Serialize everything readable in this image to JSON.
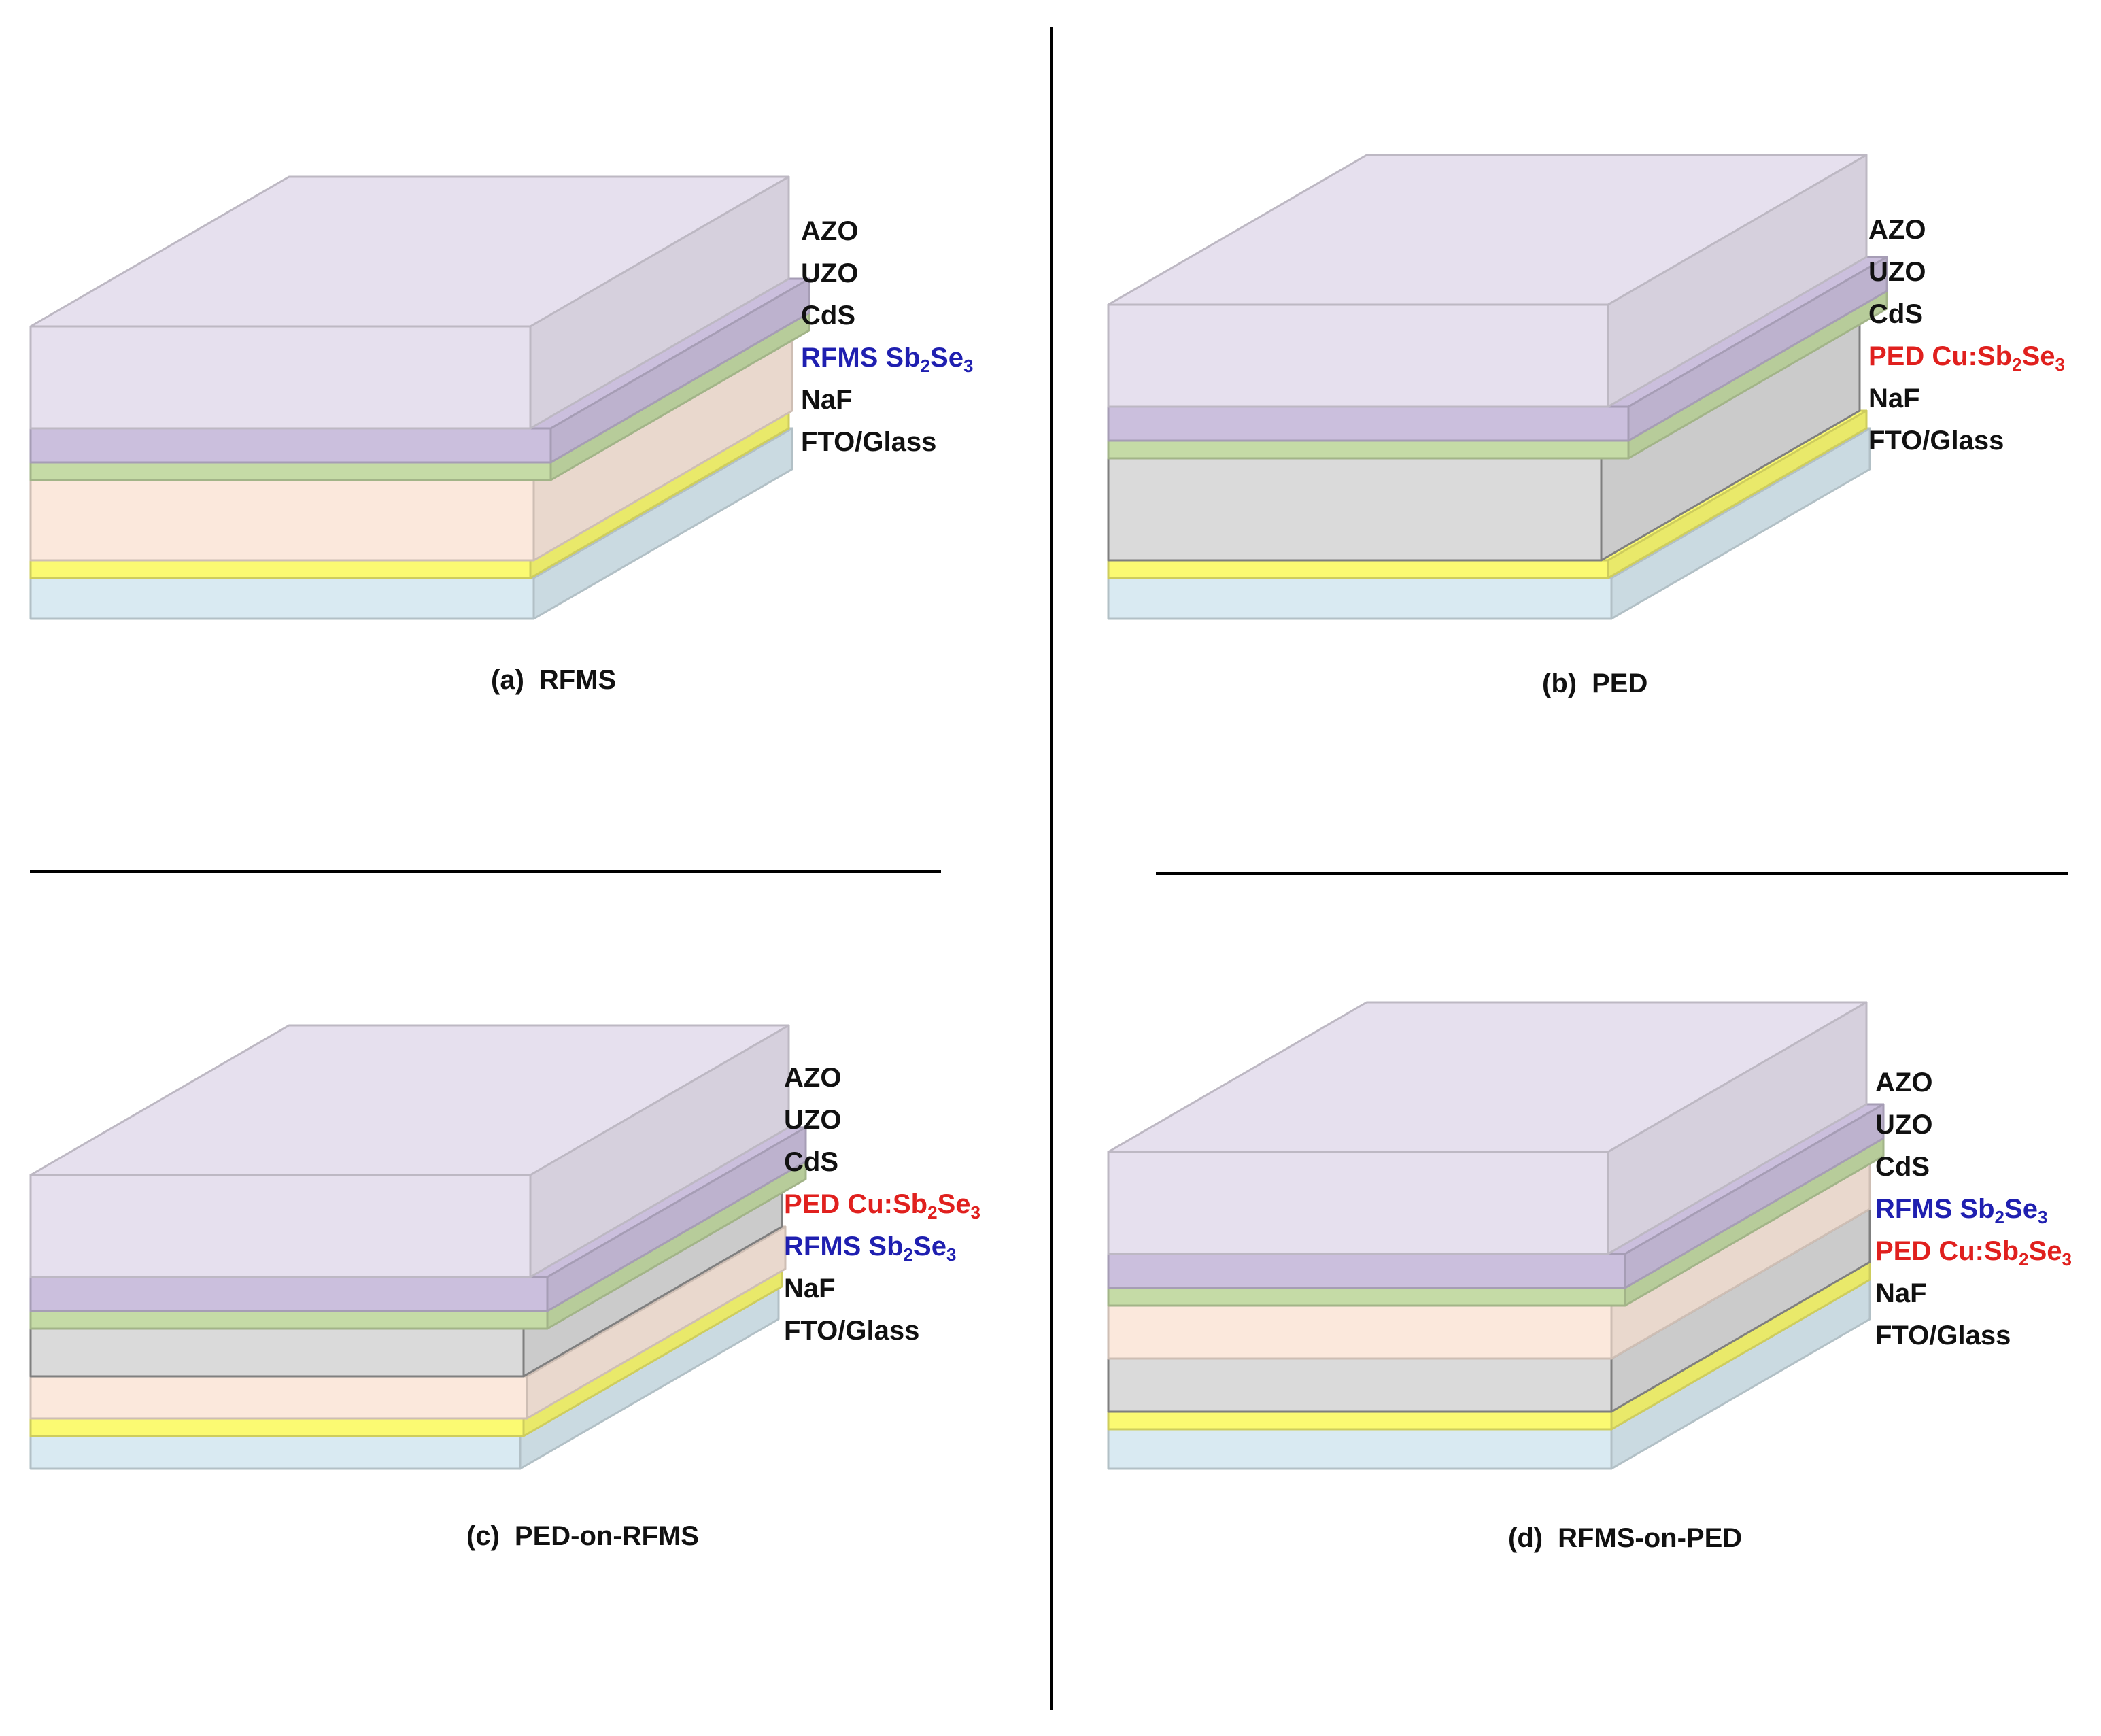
{
  "colors": {
    "AZO": "#e6e0ee",
    "UZO": "#cbbfdd",
    "CdS": "#c5dba6",
    "RFMS": "#fbe8dc",
    "PED": "#dadada",
    "NaF": "#fbfa72",
    "FTO": "#d9eaf2",
    "label_black": "#111111",
    "label_blue": "#1f1fb0",
    "label_red": "#e0201e"
  },
  "panels": [
    {
      "id": "a",
      "caption_tag": "(a)",
      "caption_name": "RFMS",
      "layer_keys": [
        "FTO",
        "NaF",
        "RFMS",
        "CdS",
        "UZO",
        "AZO"
      ],
      "labels": [
        {
          "color": "label_black",
          "prefix": "AZO"
        },
        {
          "color": "label_black",
          "prefix": "UZO"
        },
        {
          "color": "label_black",
          "prefix": "CdS"
        },
        {
          "color": "label_blue",
          "prefix": "RFMS Sb",
          "sub1": "2",
          "mid": "Se",
          "sub2": "3"
        },
        {
          "color": "label_black",
          "prefix": "NaF"
        },
        {
          "color": "label_black",
          "prefix": "FTO/Glass"
        }
      ]
    },
    {
      "id": "b",
      "caption_tag": "(b)",
      "caption_name": "PED",
      "layer_keys": [
        "FTO",
        "NaF",
        "PED",
        "CdS",
        "UZO",
        "AZO"
      ],
      "labels": [
        {
          "color": "label_black",
          "prefix": "AZO"
        },
        {
          "color": "label_black",
          "prefix": "UZO"
        },
        {
          "color": "label_black",
          "prefix": "CdS"
        },
        {
          "color": "label_red",
          "prefix": "PED Cu:Sb",
          "sub1": "2",
          "mid": "Se",
          "sub2": "3"
        },
        {
          "color": "label_black",
          "prefix": "NaF"
        },
        {
          "color": "label_black",
          "prefix": "FTO/Glass"
        }
      ]
    },
    {
      "id": "c",
      "caption_tag": "(c)",
      "caption_name": "PED-on-RFMS",
      "layer_keys": [
        "FTO",
        "NaF",
        "RFMS",
        "PED",
        "CdS",
        "UZO",
        "AZO"
      ],
      "labels": [
        {
          "color": "label_black",
          "prefix": "AZO"
        },
        {
          "color": "label_black",
          "prefix": "UZO"
        },
        {
          "color": "label_black",
          "prefix": "CdS"
        },
        {
          "color": "label_red",
          "prefix": "PED Cu:Sb",
          "sub1": "2",
          "mid": "Se",
          "sub2": "3"
        },
        {
          "color": "label_blue",
          "prefix": "RFMS Sb",
          "sub1": "2",
          "mid": "Se",
          "sub2": "3"
        },
        {
          "color": "label_black",
          "prefix": "NaF"
        },
        {
          "color": "label_black",
          "prefix": "FTO/Glass"
        }
      ]
    },
    {
      "id": "d",
      "caption_tag": "(d)",
      "caption_name": "RFMS-on-PED",
      "layer_keys": [
        "FTO",
        "NaF",
        "PED",
        "RFMS",
        "CdS",
        "UZO",
        "AZO"
      ],
      "labels": [
        {
          "color": "label_black",
          "prefix": "AZO"
        },
        {
          "color": "label_black",
          "prefix": "UZO"
        },
        {
          "color": "label_black",
          "prefix": "CdS"
        },
        {
          "color": "label_blue",
          "prefix": "RFMS Sb",
          "sub1": "2",
          "mid": "Se",
          "sub2": "3"
        },
        {
          "color": "label_red",
          "prefix": "PED Cu:Sb",
          "sub1": "2",
          "mid": "Se",
          "sub2": "3"
        },
        {
          "color": "label_black",
          "prefix": "NaF"
        },
        {
          "color": "label_black",
          "prefix": "FTO/Glass"
        }
      ]
    }
  ]
}
